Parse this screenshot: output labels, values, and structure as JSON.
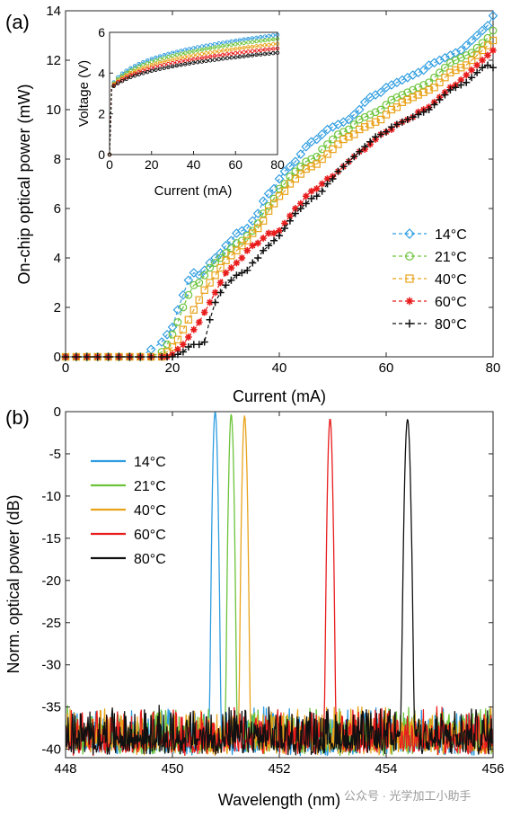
{
  "panels": {
    "a": "(a)",
    "b": "(b)"
  },
  "watermark": "公众号 · 光学加工小助手",
  "chart_data": [
    {
      "id": "a",
      "type": "line",
      "xlabel": "Current (mA)",
      "ylabel": "On-chip optical power (mW)",
      "xlim": [
        0,
        80
      ],
      "ylim": [
        0,
        14
      ],
      "xticks": [
        0,
        20,
        40,
        60,
        80
      ],
      "yticks": [
        0,
        2,
        4,
        6,
        8,
        10,
        12,
        14
      ],
      "legend_position": "lower-right",
      "series": [
        {
          "name": "14°C",
          "color": "#2f9de0",
          "marker": "diamond",
          "x": [
            0,
            2,
            4,
            6,
            8,
            10,
            12,
            14,
            16,
            18,
            19,
            20,
            21,
            22,
            23,
            24,
            25,
            26,
            27,
            28,
            29,
            30,
            31,
            32,
            33,
            34,
            35,
            36,
            37,
            38,
            39,
            40,
            41,
            42,
            43,
            44,
            45,
            46,
            47,
            48,
            49,
            50,
            51,
            52,
            53,
            54,
            55,
            56,
            57,
            58,
            59,
            60,
            61,
            62,
            63,
            64,
            65,
            66,
            67,
            68,
            69,
            70,
            71,
            72,
            73,
            74,
            75,
            76,
            77,
            78,
            79,
            80
          ],
          "y": [
            0,
            0,
            0,
            0,
            0,
            0,
            0,
            0,
            0.3,
            0.6,
            0.9,
            1.2,
            1.9,
            2.5,
            3.1,
            3.4,
            3.3,
            3.5,
            3.8,
            4.0,
            4.2,
            4.5,
            4.7,
            5.0,
            5.1,
            5.2,
            5.5,
            5.8,
            6.3,
            6.6,
            6.8,
            7.2,
            7.5,
            7.7,
            7.9,
            8.2,
            8.5,
            8.7,
            8.8,
            9.0,
            9.2,
            9.3,
            9.4,
            9.5,
            9.6,
            9.8,
            10.0,
            10.3,
            10.5,
            10.6,
            10.7,
            10.9,
            11.0,
            11.1,
            11.2,
            11.3,
            11.4,
            11.5,
            11.6,
            11.8,
            11.9,
            12.0,
            12.1,
            12.2,
            12.3,
            12.4,
            12.6,
            12.8,
            13.0,
            13.2,
            13.4,
            13.8
          ]
        },
        {
          "name": "21°C",
          "color": "#6cc33a",
          "marker": "circle",
          "x": [
            0,
            2,
            4,
            6,
            8,
            10,
            12,
            14,
            16,
            18,
            19,
            20,
            21,
            22,
            23,
            24,
            25,
            26,
            27,
            28,
            29,
            30,
            31,
            32,
            33,
            34,
            35,
            36,
            37,
            38,
            39,
            40,
            41,
            42,
            43,
            44,
            45,
            46,
            47,
            48,
            49,
            50,
            51,
            52,
            53,
            54,
            55,
            56,
            57,
            58,
            59,
            60,
            61,
            62,
            63,
            64,
            65,
            66,
            67,
            68,
            69,
            70,
            71,
            72,
            73,
            74,
            75,
            76,
            77,
            78,
            79,
            80
          ],
          "y": [
            0,
            0,
            0,
            0,
            0,
            0,
            0,
            0,
            0,
            0.2,
            0.5,
            0.9,
            1.4,
            2.0,
            2.5,
            2.9,
            3.0,
            3.3,
            3.6,
            3.8,
            4.0,
            4.2,
            4.4,
            4.6,
            4.7,
            4.9,
            5.1,
            5.4,
            5.8,
            6.1,
            6.4,
            6.8,
            7.0,
            7.3,
            7.5,
            7.7,
            7.9,
            8.0,
            8.1,
            8.4,
            8.6,
            8.8,
            9.0,
            9.1,
            9.2,
            9.4,
            9.6,
            9.7,
            9.8,
            9.9,
            10.0,
            10.2,
            10.4,
            10.5,
            10.6,
            10.7,
            10.8,
            10.9,
            11.0,
            11.1,
            11.3,
            11.5,
            11.7,
            11.9,
            12.0,
            12.1,
            12.2,
            12.3,
            12.5,
            12.7,
            12.9,
            13.2
          ]
        },
        {
          "name": "40°C",
          "color": "#e8a31c",
          "marker": "square",
          "x": [
            0,
            2,
            4,
            6,
            8,
            10,
            12,
            14,
            16,
            18,
            19,
            20,
            21,
            22,
            23,
            24,
            25,
            26,
            27,
            28,
            29,
            30,
            31,
            32,
            33,
            34,
            35,
            36,
            37,
            38,
            39,
            40,
            41,
            42,
            43,
            44,
            45,
            46,
            47,
            48,
            49,
            50,
            51,
            52,
            53,
            54,
            55,
            56,
            57,
            58,
            59,
            60,
            61,
            62,
            63,
            64,
            65,
            66,
            67,
            68,
            69,
            70,
            71,
            72,
            73,
            74,
            75,
            76,
            77,
            78,
            79,
            80
          ],
          "y": [
            0,
            0,
            0,
            0,
            0,
            0,
            0,
            0,
            0,
            0,
            0.2,
            0.4,
            0.7,
            1.1,
            1.5,
            1.9,
            2.3,
            2.7,
            3.0,
            3.3,
            3.6,
            3.9,
            4.1,
            4.3,
            4.5,
            4.7,
            5.0,
            5.2,
            5.5,
            5.9,
            6.2,
            6.5,
            6.7,
            7.0,
            7.2,
            7.4,
            7.6,
            7.7,
            7.8,
            8.0,
            8.2,
            8.4,
            8.6,
            8.8,
            8.9,
            9.0,
            9.2,
            9.3,
            9.4,
            9.5,
            9.6,
            9.8,
            10.0,
            10.1,
            10.3,
            10.4,
            10.5,
            10.6,
            10.7,
            10.8,
            10.9,
            11.1,
            11.3,
            11.5,
            11.6,
            11.7,
            11.8,
            12.0,
            12.2,
            12.4,
            12.6,
            12.8
          ]
        },
        {
          "name": "60°C",
          "color": "#e81c1c",
          "marker": "star",
          "x": [
            0,
            2,
            4,
            6,
            8,
            10,
            12,
            14,
            16,
            18,
            19,
            20,
            21,
            22,
            23,
            24,
            25,
            26,
            27,
            28,
            29,
            30,
            31,
            32,
            33,
            34,
            35,
            36,
            37,
            38,
            39,
            40,
            41,
            42,
            43,
            44,
            45,
            46,
            47,
            48,
            49,
            50,
            51,
            52,
            53,
            54,
            55,
            56,
            57,
            58,
            59,
            60,
            61,
            62,
            63,
            64,
            65,
            66,
            67,
            68,
            69,
            70,
            71,
            72,
            73,
            74,
            75,
            76,
            77,
            78,
            79,
            80
          ],
          "y": [
            0,
            0,
            0,
            0,
            0,
            0,
            0,
            0,
            0,
            0,
            0,
            0.1,
            0.3,
            0.5,
            0.8,
            1.1,
            1.4,
            1.8,
            2.2,
            2.6,
            3.0,
            3.4,
            3.6,
            3.8,
            4.0,
            4.3,
            4.5,
            4.6,
            4.8,
            5.0,
            5.0,
            5.1,
            5.4,
            5.7,
            6.0,
            6.2,
            6.5,
            6.7,
            6.8,
            7.0,
            7.2,
            7.3,
            7.5,
            7.7,
            7.9,
            8.1,
            8.3,
            8.4,
            8.6,
            8.8,
            9.0,
            9.1,
            9.2,
            9.4,
            9.5,
            9.6,
            9.7,
            9.9,
            10.0,
            10.1,
            10.3,
            10.5,
            10.7,
            10.9,
            11.0,
            11.2,
            11.4,
            11.6,
            11.8,
            12.0,
            12.2,
            12.4
          ]
        },
        {
          "name": "80°C",
          "color": "#111111",
          "marker": "plus",
          "x": [
            0,
            2,
            4,
            6,
            8,
            10,
            12,
            14,
            16,
            18,
            19,
            20,
            21,
            22,
            23,
            24,
            25,
            26,
            27,
            28,
            29,
            30,
            31,
            32,
            33,
            34,
            35,
            36,
            37,
            38,
            39,
            40,
            41,
            42,
            43,
            44,
            45,
            46,
            47,
            48,
            49,
            50,
            51,
            52,
            53,
            54,
            55,
            56,
            57,
            58,
            59,
            60,
            61,
            62,
            63,
            64,
            65,
            66,
            67,
            68,
            69,
            70,
            71,
            72,
            73,
            74,
            75,
            76,
            77,
            78,
            79,
            80
          ],
          "y": [
            0,
            0,
            0,
            0,
            0,
            0,
            0,
            0,
            0,
            0,
            0,
            0,
            0.1,
            0.2,
            0.4,
            0.5,
            0.5,
            0.6,
            1.5,
            2.2,
            2.6,
            2.9,
            3.1,
            3.3,
            3.4,
            3.5,
            3.8,
            4.0,
            4.3,
            4.5,
            4.7,
            4.9,
            5.2,
            5.5,
            5.8,
            6.0,
            6.2,
            6.4,
            6.5,
            6.7,
            7.0,
            7.2,
            7.5,
            7.7,
            7.9,
            8.1,
            8.3,
            8.5,
            8.7,
            8.9,
            9.0,
            9.1,
            9.3,
            9.4,
            9.5,
            9.6,
            9.7,
            9.8,
            9.9,
            10.0,
            10.2,
            10.4,
            10.6,
            10.8,
            10.9,
            11.0,
            11.1,
            11.3,
            11.5,
            11.7,
            11.8,
            11.7
          ]
        }
      ],
      "inset": {
        "type": "line",
        "xlabel": "Current (mA)",
        "ylabel": "Voltage (V)",
        "xlim": [
          0,
          80
        ],
        "ylim": [
          0,
          6
        ],
        "xticks": [
          0,
          20,
          40,
          60,
          80
        ],
        "yticks": [
          0,
          2,
          4,
          6
        ],
        "series": [
          {
            "name": "14°C",
            "color": "#2f9de0",
            "x": [
              0,
              1,
              2,
              4,
              6,
              8,
              10,
              15,
              20,
              25,
              30,
              35,
              40,
              45,
              50,
              55,
              60,
              65,
              70,
              75,
              80
            ],
            "y": [
              0,
              3.35,
              3.55,
              3.8,
              3.98,
              4.12,
              4.25,
              4.5,
              4.7,
              4.86,
              5.0,
              5.12,
              5.23,
              5.33,
              5.42,
              5.51,
              5.59,
              5.67,
              5.74,
              5.81,
              5.88
            ]
          },
          {
            "name": "21°C",
            "color": "#6cc33a",
            "x": [
              0,
              1,
              2,
              4,
              6,
              8,
              10,
              15,
              20,
              25,
              30,
              35,
              40,
              45,
              50,
              55,
              60,
              65,
              70,
              75,
              80
            ],
            "y": [
              0,
              3.33,
              3.5,
              3.72,
              3.88,
              4.01,
              4.13,
              4.37,
              4.56,
              4.71,
              4.85,
              4.97,
              5.07,
              5.17,
              5.26,
              5.34,
              5.42,
              5.49,
              5.56,
              5.62,
              5.68
            ]
          },
          {
            "name": "40°C",
            "color": "#e8a31c",
            "x": [
              0,
              1,
              2,
              4,
              6,
              8,
              10,
              15,
              20,
              25,
              30,
              35,
              40,
              45,
              50,
              55,
              60,
              65,
              70,
              75,
              80
            ],
            "y": [
              0,
              3.3,
              3.45,
              3.64,
              3.78,
              3.9,
              4.01,
              4.22,
              4.4,
              4.54,
              4.66,
              4.77,
              4.87,
              4.96,
              5.04,
              5.12,
              5.19,
              5.26,
              5.32,
              5.38,
              5.44
            ]
          },
          {
            "name": "60°C",
            "color": "#e81c1c",
            "x": [
              0,
              1,
              2,
              4,
              6,
              8,
              10,
              15,
              20,
              25,
              30,
              35,
              40,
              45,
              50,
              55,
              60,
              65,
              70,
              75,
              80
            ],
            "y": [
              0,
              3.27,
              3.4,
              3.56,
              3.69,
              3.8,
              3.9,
              4.09,
              4.25,
              4.38,
              4.49,
              4.59,
              4.68,
              4.76,
              4.84,
              4.91,
              4.98,
              5.04,
              5.1,
              5.16,
              5.21
            ]
          },
          {
            "name": "80°C",
            "color": "#111111",
            "x": [
              0,
              1,
              2,
              4,
              6,
              8,
              10,
              15,
              20,
              25,
              30,
              35,
              40,
              45,
              50,
              55,
              60,
              65,
              70,
              75,
              80
            ],
            "y": [
              0,
              3.25,
              3.36,
              3.5,
              3.61,
              3.71,
              3.8,
              3.97,
              4.11,
              4.23,
              4.33,
              4.42,
              4.51,
              4.58,
              4.65,
              4.72,
              4.78,
              4.84,
              4.9,
              4.95,
              5.0
            ]
          }
        ]
      }
    },
    {
      "id": "b",
      "type": "line",
      "xlabel": "Wavelength (nm)",
      "ylabel": "Norm. optical power (dB)",
      "xlim": [
        448,
        456
      ],
      "ylim": [
        -41,
        0
      ],
      "xticks": [
        448,
        450,
        452,
        454,
        456
      ],
      "yticks": [
        0,
        -5,
        -10,
        -15,
        -20,
        -25,
        -30,
        -35,
        -40
      ],
      "legend_position": "upper-left",
      "noise_floor_db": -38.5,
      "series": [
        {
          "name": "14°C",
          "color": "#2f9de0",
          "peak_nm": 450.8,
          "peak_db": 0.0,
          "fwhm_nm": 0.06
        },
        {
          "name": "21°C",
          "color": "#6cc33a",
          "peak_nm": 451.1,
          "peak_db": -0.3,
          "fwhm_nm": 0.06
        },
        {
          "name": "40°C",
          "color": "#e8a31c",
          "peak_nm": 451.35,
          "peak_db": -0.5,
          "fwhm_nm": 0.06
        },
        {
          "name": "60°C",
          "color": "#e81c1c",
          "peak_nm": 452.95,
          "peak_db": -0.8,
          "fwhm_nm": 0.06
        },
        {
          "name": "80°C",
          "color": "#111111",
          "peak_nm": 454.4,
          "peak_db": -0.9,
          "fwhm_nm": 0.07
        }
      ]
    }
  ]
}
